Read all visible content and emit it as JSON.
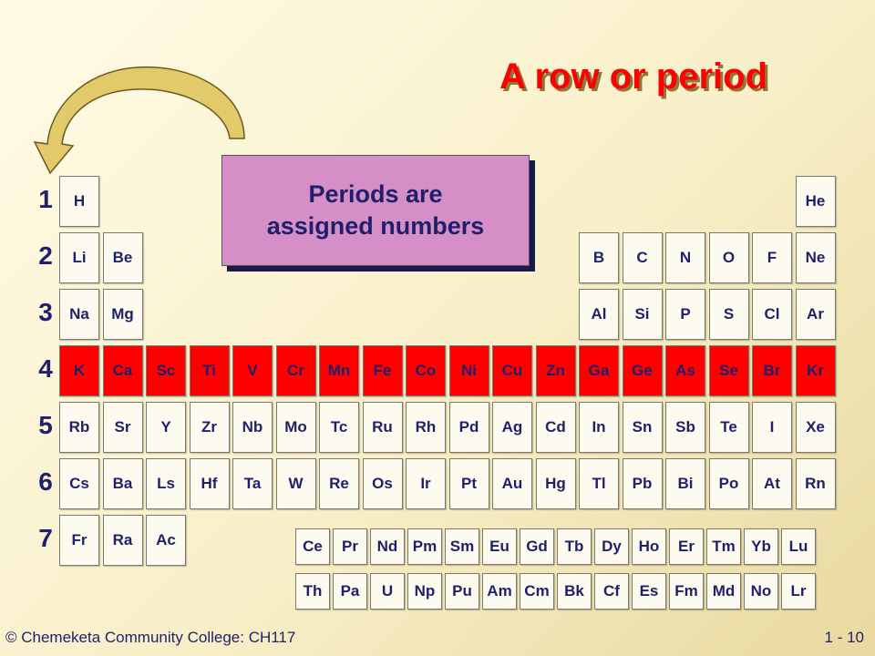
{
  "slide": {
    "title": "A row or period",
    "callout": "Periods are\nassigned numbers",
    "footer": "© Chemeketa Community College: CH117",
    "page_number": "1 - 10",
    "highlight_color": "#ff0000",
    "callout_color": "#d68ec6"
  },
  "period_numbers": [
    "1",
    "2",
    "3",
    "4",
    "5",
    "6",
    "7"
  ],
  "highlighted_period": 4,
  "table_rows": [
    {
      "period": 1,
      "elements": [
        {
          "s": "H",
          "col": 1
        },
        {
          "s": "He",
          "col": 18
        }
      ]
    },
    {
      "period": 2,
      "elements": [
        {
          "s": "Li",
          "col": 1
        },
        {
          "s": "Be",
          "col": 2
        },
        {
          "s": "B",
          "col": 13
        },
        {
          "s": "C",
          "col": 14
        },
        {
          "s": "N",
          "col": 15
        },
        {
          "s": "O",
          "col": 16
        },
        {
          "s": "F",
          "col": 17
        },
        {
          "s": "Ne",
          "col": 18
        }
      ]
    },
    {
      "period": 3,
      "elements": [
        {
          "s": "Na",
          "col": 1
        },
        {
          "s": "Mg",
          "col": 2
        },
        {
          "s": "Al",
          "col": 13
        },
        {
          "s": "Si",
          "col": 14
        },
        {
          "s": "P",
          "col": 15
        },
        {
          "s": "S",
          "col": 16
        },
        {
          "s": "Cl",
          "col": 17
        },
        {
          "s": "Ar",
          "col": 18
        }
      ]
    },
    {
      "period": 4,
      "elements": [
        {
          "s": "K",
          "col": 1
        },
        {
          "s": "Ca",
          "col": 2
        },
        {
          "s": "Sc",
          "col": 3
        },
        {
          "s": "Ti",
          "col": 4
        },
        {
          "s": "V",
          "col": 5
        },
        {
          "s": "Cr",
          "col": 6
        },
        {
          "s": "Mn",
          "col": 7
        },
        {
          "s": "Fe",
          "col": 8
        },
        {
          "s": "Co",
          "col": 9
        },
        {
          "s": "Ni",
          "col": 10
        },
        {
          "s": "Cu",
          "col": 11
        },
        {
          "s": "Zn",
          "col": 12
        },
        {
          "s": "Ga",
          "col": 13
        },
        {
          "s": "Ge",
          "col": 14
        },
        {
          "s": "As",
          "col": 15
        },
        {
          "s": "Se",
          "col": 16
        },
        {
          "s": "Br",
          "col": 17
        },
        {
          "s": "Kr",
          "col": 18
        }
      ]
    },
    {
      "period": 5,
      "elements": [
        {
          "s": "Rb",
          "col": 1
        },
        {
          "s": "Sr",
          "col": 2
        },
        {
          "s": "Y",
          "col": 3
        },
        {
          "s": "Zr",
          "col": 4
        },
        {
          "s": "Nb",
          "col": 5
        },
        {
          "s": "Mo",
          "col": 6
        },
        {
          "s": "Tc",
          "col": 7
        },
        {
          "s": "Ru",
          "col": 8
        },
        {
          "s": "Rh",
          "col": 9
        },
        {
          "s": "Pd",
          "col": 10
        },
        {
          "s": "Ag",
          "col": 11
        },
        {
          "s": "Cd",
          "col": 12
        },
        {
          "s": "In",
          "col": 13
        },
        {
          "s": "Sn",
          "col": 14
        },
        {
          "s": "Sb",
          "col": 15
        },
        {
          "s": "Te",
          "col": 16
        },
        {
          "s": "I",
          "col": 17
        },
        {
          "s": "Xe",
          "col": 18
        }
      ]
    },
    {
      "period": 6,
      "elements": [
        {
          "s": "Cs",
          "col": 1
        },
        {
          "s": "Ba",
          "col": 2
        },
        {
          "s": "Ls",
          "col": 3
        },
        {
          "s": "Hf",
          "col": 4
        },
        {
          "s": "Ta",
          "col": 5
        },
        {
          "s": "W",
          "col": 6
        },
        {
          "s": "Re",
          "col": 7
        },
        {
          "s": "Os",
          "col": 8
        },
        {
          "s": "Ir",
          "col": 9
        },
        {
          "s": "Pt",
          "col": 10
        },
        {
          "s": "Au",
          "col": 11
        },
        {
          "s": "Hg",
          "col": 12
        },
        {
          "s": "Tl",
          "col": 13
        },
        {
          "s": "Pb",
          "col": 14
        },
        {
          "s": "Bi",
          "col": 15
        },
        {
          "s": "Po",
          "col": 16
        },
        {
          "s": "At",
          "col": 17
        },
        {
          "s": "Rn",
          "col": 18
        }
      ]
    },
    {
      "period": 7,
      "elements": [
        {
          "s": "Fr",
          "col": 1
        },
        {
          "s": "Ra",
          "col": 2
        },
        {
          "s": "Ac",
          "col": 3
        }
      ]
    }
  ],
  "lanthanides": [
    "Ce",
    "Pr",
    "Nd",
    "Pm",
    "Sm",
    "Eu",
    "Gd",
    "Tb",
    "Dy",
    "Ho",
    "Er",
    "Tm",
    "Yb",
    "Lu"
  ],
  "actinides": [
    "Th",
    "Pa",
    "U",
    "Np",
    "Pu",
    "Am",
    "Cm",
    "Bk",
    "Cf",
    "Es",
    "Fm",
    "Md",
    "No",
    "Lr"
  ]
}
